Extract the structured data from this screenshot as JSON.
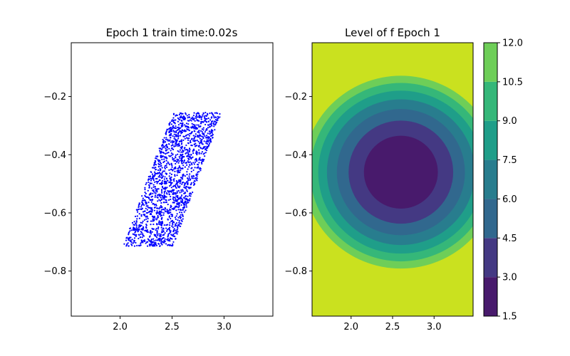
{
  "chart_data": [
    {
      "type": "scatter",
      "title": "Epoch 1 train time:0.02s",
      "xlabel": "",
      "ylabel": "",
      "xlim": [
        1.53,
        3.47
      ],
      "ylim": [
        -0.955,
        -0.015
      ],
      "xticks": [
        2.0,
        2.5,
        3.0
      ],
      "xtick_labels": [
        "2.0",
        "2.5",
        "3.0"
      ],
      "yticks": [
        -0.2,
        -0.4,
        -0.6,
        -0.8
      ],
      "ytick_labels": [
        "−0.2",
        "−0.4",
        "−0.6",
        "−0.8"
      ],
      "grid": false,
      "marker_color": "#0000ff",
      "region": {
        "shape": "parallelogram",
        "corners": [
          [
            2.03,
            -0.715
          ],
          [
            2.51,
            -0.715
          ],
          [
            3.01,
            -0.255
          ],
          [
            2.5,
            -0.255
          ]
        ]
      },
      "point_count": 1800
    },
    {
      "type": "heatmap",
      "subtype": "filled-contour",
      "title": "Level of f Epoch 1",
      "xlabel": "",
      "ylabel": "",
      "xlim": [
        1.53,
        3.47
      ],
      "ylim": [
        -0.955,
        -0.015
      ],
      "xticks": [
        2.0,
        2.5,
        3.0
      ],
      "xtick_labels": [
        "2.0",
        "2.5",
        "3.0"
      ],
      "yticks": [
        -0.2,
        -0.4,
        -0.6,
        -0.8
      ],
      "ytick_labels": [
        "−0.2",
        "−0.4",
        "−0.6",
        "−0.8"
      ],
      "field_center": [
        2.6,
        -0.46
      ],
      "levels": [
        1.5,
        3.0,
        4.5,
        6.0,
        7.5,
        9.0,
        10.5,
        12.0
      ],
      "level_colors": [
        "#481a6c",
        "#443983",
        "#31688e",
        "#287d8e",
        "#1f9e89",
        "#35b779",
        "#6ece58",
        "#cae11f"
      ],
      "colorbar": {
        "ticks": [
          1.5,
          3.0,
          4.5,
          6.0,
          7.5,
          9.0,
          10.5,
          12.0
        ],
        "tick_labels": [
          "1.5",
          "3.0",
          "4.5",
          "6.0",
          "7.5",
          "9.0",
          "10.5",
          "12.0"
        ]
      }
    }
  ]
}
